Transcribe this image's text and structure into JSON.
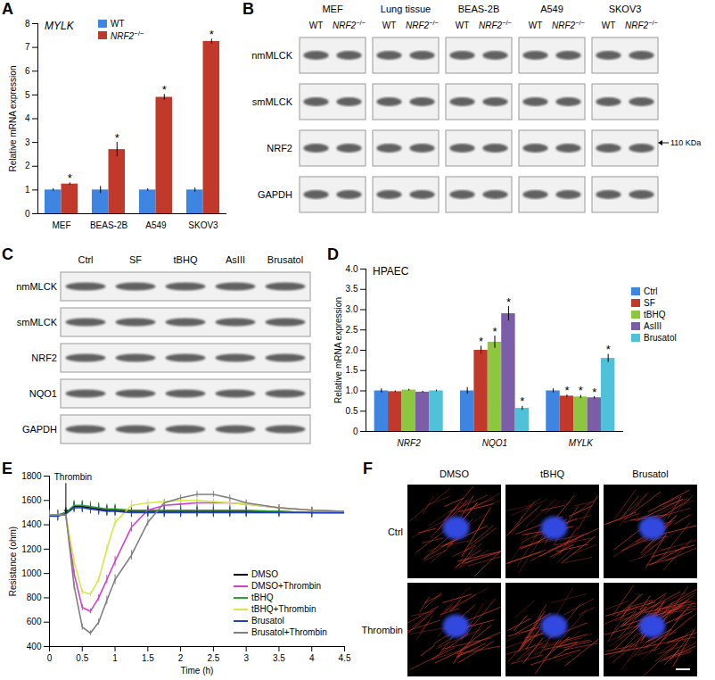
{
  "panel_labels": [
    "A",
    "B",
    "C",
    "D",
    "E",
    "F"
  ],
  "chart_data": [
    {
      "type": "bar",
      "title": "MYLK",
      "y_label": "Relative mRNA expression",
      "categories": [
        "MEF",
        "BEAS-2B",
        "A549",
        "SKOV3"
      ],
      "series": [
        {
          "name": "WT",
          "color": "#3d85e0",
          "values": [
            1,
            1,
            1,
            1
          ],
          "errors": [
            0.05,
            0.15,
            0.05,
            0.08
          ]
        },
        {
          "name": "NRF2−/−",
          "color": "#c0392b",
          "values": [
            1.25,
            2.7,
            4.9,
            7.25
          ],
          "errors": [
            0.05,
            0.3,
            0.12,
            0.1
          ],
          "significance": [
            "*",
            "*",
            "*",
            "*"
          ]
        }
      ],
      "ylim": [
        0,
        8
      ],
      "yticks": [
        0,
        1,
        2,
        3,
        4,
        5,
        6,
        7,
        8
      ],
      "legend": "top"
    },
    {
      "type": "bar",
      "title": "HPAEC",
      "y_label": "Relative mRNA expression",
      "categories": [
        "NRF2",
        "NQO1",
        "MYLK"
      ],
      "series": [
        {
          "name": "Ctrl",
          "color": "#3d85e0",
          "values": [
            1,
            1,
            1
          ],
          "errors": [
            0.05,
            0.08,
            0.05
          ]
        },
        {
          "name": "SF",
          "color": "#c0392b",
          "values": [
            0.98,
            2.0,
            0.87
          ],
          "errors": [
            0.02,
            0.1,
            0.03
          ],
          "significance": [
            null,
            "*",
            "*"
          ]
        },
        {
          "name": "tBHQ",
          "color": "#8dc63f",
          "values": [
            1.02,
            2.2,
            0.85
          ],
          "errors": [
            0.02,
            0.15,
            0.04
          ],
          "significance": [
            null,
            "*",
            "*"
          ]
        },
        {
          "name": "AsIII",
          "color": "#7b5ea7",
          "values": [
            0.97,
            2.9,
            0.83
          ],
          "errors": [
            0.02,
            0.18,
            0.03
          ],
          "significance": [
            null,
            "*",
            "*"
          ]
        },
        {
          "name": "Brusatol",
          "color": "#4fc1d9",
          "values": [
            1.0,
            0.57,
            1.8
          ],
          "errors": [
            0.02,
            0.05,
            0.1
          ],
          "significance": [
            null,
            "*",
            "*"
          ]
        }
      ],
      "ylim": [
        0,
        4
      ],
      "yticks": [
        0,
        0.5,
        {
          "value": 1,
          "label": "1.0"
        },
        1.5,
        {
          "value": 2,
          "label": "2.0"
        },
        2.5,
        {
          "value": 3,
          "label": "3.0"
        },
        3.5,
        {
          "value": 4,
          "label": "4.0"
        }
      ],
      "legend": "right"
    },
    {
      "type": "line",
      "x_label": "Time (h)",
      "y_label": "Resistance (ohm)",
      "x": [
        0,
        0.125,
        0.25,
        0.375,
        0.5,
        0.625,
        0.75,
        0.875,
        1,
        1.25,
        1.5,
        1.75,
        2,
        2.25,
        2.5,
        2.75,
        3,
        3.5,
        4,
        4.5
      ],
      "series": [
        {
          "name": "DMSO",
          "color": "#000000",
          "values": [
            1480,
            1480,
            1500,
            1550,
            1550,
            1540,
            1530,
            1520,
            1520,
            1510,
            1510,
            1510,
            1510,
            1510,
            1510,
            1510,
            1510,
            1510,
            1500,
            1500
          ],
          "errors": [
            40,
            40,
            40,
            40,
            40,
            40,
            40,
            40,
            40,
            40,
            40,
            40,
            40,
            40,
            40,
            40,
            40,
            40,
            40,
            40
          ]
        },
        {
          "name": "DMSO+Thrombin",
          "color": "#d040d0",
          "values": [
            1480,
            1480,
            1480,
            1000,
            720,
            690,
            800,
            950,
            1100,
            1380,
            1520,
            1560,
            1570,
            1580,
            1580,
            1580,
            1570,
            1540,
            1520,
            1510
          ],
          "errors": [
            30,
            30,
            30,
            30,
            25,
            20,
            25,
            35,
            40,
            40,
            30,
            25,
            25,
            25,
            25,
            25,
            25,
            25,
            25,
            25
          ]
        },
        {
          "name": "tBHQ",
          "color": "#30a030",
          "values": [
            1480,
            1480,
            1500,
            1560,
            1560,
            1550,
            1540,
            1530,
            1530,
            1520,
            1520,
            1520,
            1520,
            1520,
            1520,
            1520,
            1520,
            1510,
            1500,
            1500
          ],
          "errors": [
            40,
            40,
            40,
            40,
            40,
            40,
            40,
            40,
            40,
            40,
            40,
            40,
            40,
            40,
            40,
            40,
            40,
            40,
            40,
            40
          ]
        },
        {
          "name": "tBHQ+Thrombin",
          "color": "#d4e84a",
          "values": [
            1480,
            1480,
            1480,
            1100,
            850,
            830,
            950,
            1200,
            1420,
            1560,
            1580,
            1590,
            1600,
            1600,
            1590,
            1580,
            1570,
            1540,
            1520,
            1510
          ],
          "errors": [
            30,
            30,
            30,
            30,
            25,
            20,
            25,
            35,
            40,
            40,
            30,
            25,
            25,
            25,
            25,
            25,
            25,
            25,
            25,
            25
          ]
        },
        {
          "name": "Brusatol",
          "color": "#2040c0",
          "values": [
            1470,
            1470,
            1490,
            1540,
            1540,
            1530,
            1520,
            1510,
            1510,
            1500,
            1500,
            1500,
            1500,
            1500,
            1500,
            1500,
            1500,
            1500,
            1500,
            1500
          ],
          "errors": [
            40,
            40,
            40,
            40,
            40,
            40,
            40,
            40,
            40,
            40,
            40,
            40,
            40,
            40,
            40,
            40,
            40,
            40,
            40,
            40
          ]
        },
        {
          "name": "Brusatol+Thrombin",
          "color": "#808080",
          "values": [
            1480,
            1480,
            1480,
            900,
            560,
            510,
            600,
            780,
            950,
            1150,
            1420,
            1580,
            1620,
            1650,
            1650,
            1620,
            1580,
            1540,
            1520,
            1510
          ],
          "errors": [
            30,
            30,
            30,
            30,
            25,
            20,
            25,
            35,
            40,
            40,
            30,
            25,
            25,
            25,
            25,
            25,
            25,
            25,
            25,
            25
          ]
        }
      ],
      "xlim": [
        0,
        4.5
      ],
      "xticks": [
        0,
        0.5,
        1,
        1.5,
        2,
        2.5,
        3,
        3.5,
        4,
        4.5
      ],
      "ylim": [
        400,
        1800
      ],
      "yticks": [
        400,
        600,
        800,
        1000,
        1200,
        1400,
        1600,
        1800
      ],
      "annotations": [
        {
          "text": "Thrombin",
          "x": 0.25,
          "y": 1740
        }
      ],
      "legend": "bottom-right"
    }
  ],
  "blots": [
    {
      "groups": [
        "MEF",
        "Lung tissue",
        "BEAS-2B",
        "A549",
        "SKOV3"
      ],
      "lanes": [
        "WT",
        "NRF2−/−"
      ],
      "rows": [
        "nmMLCK",
        "smMLCK",
        "NRF2",
        "GAPDH"
      ],
      "marker": {
        "row": "NRF2",
        "text": "110 KDa"
      }
    },
    {
      "lanes": [
        "Ctrl",
        "SF",
        "tBHQ",
        "AsIII",
        "Brusatol"
      ],
      "rows": [
        "nmMLCK",
        "smMLCK",
        "NRF2",
        "NQO1",
        "GAPDH"
      ]
    }
  ],
  "micrographs": {
    "columns": [
      "DMSO",
      "tBHQ",
      "Brusatol"
    ],
    "rows": [
      "Ctrl",
      "Thrombin"
    ]
  }
}
